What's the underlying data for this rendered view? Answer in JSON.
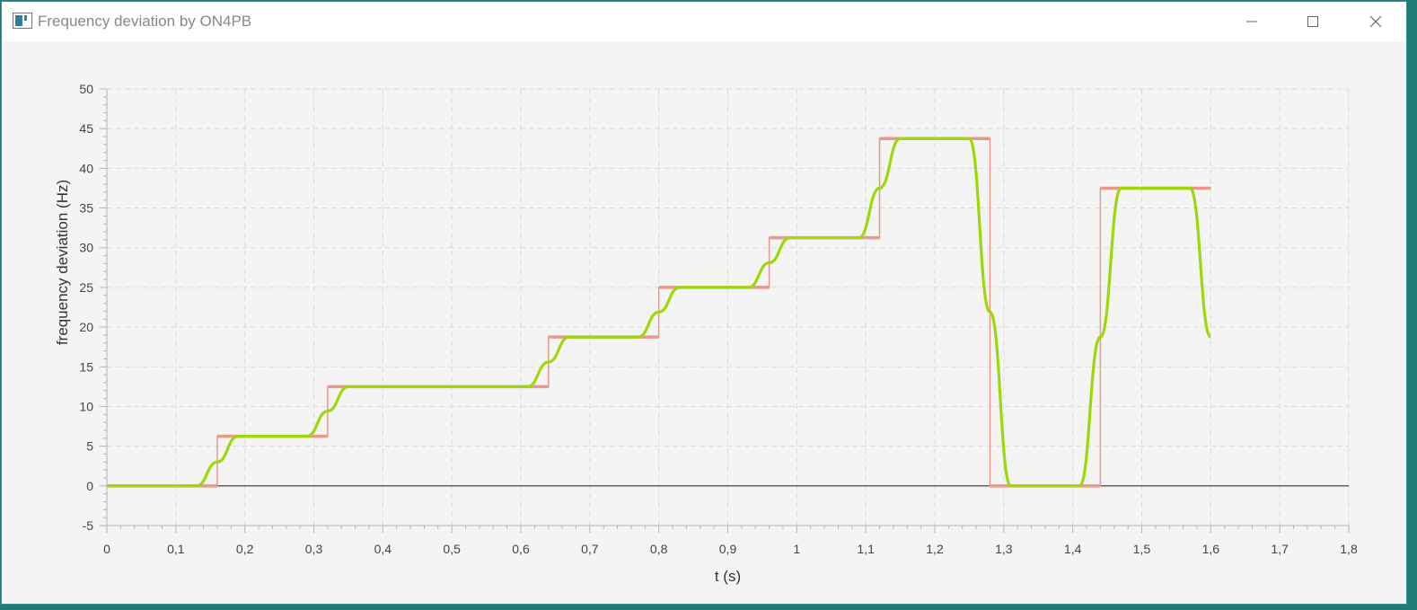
{
  "window": {
    "title": "Frequency deviation by ON4PB",
    "icons": [
      "app-icon",
      "minimize-icon",
      "maximize-icon",
      "close-icon"
    ]
  },
  "colors": {
    "grid": "#dcdcdc",
    "axis": "#b4b4b4",
    "zero_line": "#555555",
    "step_series": "#e8998a",
    "filtered_series": "#9ed80a",
    "plot_background": "#f4f4f4"
  },
  "chart_data": {
    "type": "line",
    "title": "",
    "xlabel": "t (s)",
    "ylabel": "frequency deviation (Hz)",
    "xlim": [
      0,
      1.8
    ],
    "ylim": [
      -5,
      50
    ],
    "grid": true,
    "legend": "none",
    "x_ticks": [
      "0",
      "0,1",
      "0,2",
      "0,3",
      "0,4",
      "0,5",
      "0,6",
      "0,7",
      "0,8",
      "0,9",
      "1",
      "1,1",
      "1,2",
      "1,3",
      "1,4",
      "1,5",
      "1,6",
      "1,7",
      "1,8"
    ],
    "y_ticks": [
      "-5",
      "0",
      "5",
      "10",
      "15",
      "20",
      "25",
      "30",
      "35",
      "40",
      "45",
      "50"
    ],
    "series": [
      {
        "style": "step",
        "segments": [
          {
            "x": [
              0,
              0.16
            ],
            "y": 0
          },
          {
            "x": [
              0.16,
              0.32
            ],
            "y": 6.25
          },
          {
            "x": [
              0.32,
              0.64
            ],
            "y": 12.5
          },
          {
            "x": [
              0.64,
              0.8
            ],
            "y": 18.75
          },
          {
            "x": [
              0.8,
              0.96
            ],
            "y": 25
          },
          {
            "x": [
              0.96,
              1.12
            ],
            "y": 31.25
          },
          {
            "x": [
              1.12,
              1.28
            ],
            "y": 43.75
          },
          {
            "x": [
              1.28,
              1.44
            ],
            "y": 0
          },
          {
            "x": [
              1.44,
              1.6
            ],
            "y": 37.5
          }
        ]
      },
      {
        "style": "smooth",
        "points": [
          [
            0,
            0
          ],
          [
            0.13,
            0
          ],
          [
            0.16,
            3.0
          ],
          [
            0.19,
            6.25
          ],
          [
            0.29,
            6.25
          ],
          [
            0.32,
            9.4
          ],
          [
            0.35,
            12.5
          ],
          [
            0.61,
            12.5
          ],
          [
            0.64,
            15.6
          ],
          [
            0.67,
            18.75
          ],
          [
            0.77,
            18.75
          ],
          [
            0.8,
            21.9
          ],
          [
            0.83,
            25
          ],
          [
            0.93,
            25
          ],
          [
            0.96,
            28.1
          ],
          [
            0.99,
            31.25
          ],
          [
            1.09,
            31.25
          ],
          [
            1.12,
            37.5
          ],
          [
            1.15,
            43.75
          ],
          [
            1.25,
            43.75
          ],
          [
            1.28,
            21.9
          ],
          [
            1.31,
            0
          ],
          [
            1.41,
            0
          ],
          [
            1.44,
            18.75
          ],
          [
            1.47,
            37.5
          ],
          [
            1.57,
            37.5
          ],
          [
            1.6,
            18.75
          ]
        ]
      }
    ]
  }
}
